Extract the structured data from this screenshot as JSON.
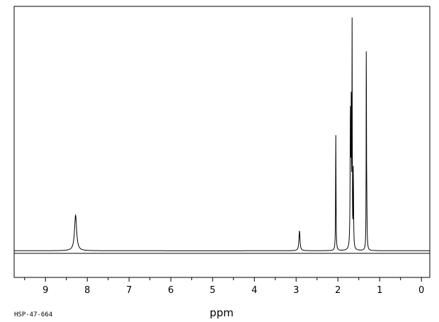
{
  "chart_data": {
    "type": "line",
    "title": "",
    "xlabel": "ppm",
    "ylabel": "",
    "sample_code": "HSP-47-664",
    "xlim": [
      9.75,
      -0.2
    ],
    "ylim": [
      -0.12,
      1.1
    ],
    "x_reversed": true,
    "grid": false,
    "ticks": [
      {
        "value": 9,
        "label": "9"
      },
      {
        "value": 8,
        "label": "8"
      },
      {
        "value": 7,
        "label": "7"
      },
      {
        "value": 6,
        "label": "6"
      },
      {
        "value": 5,
        "label": "5"
      },
      {
        "value": 4,
        "label": "4"
      },
      {
        "value": 3,
        "label": "3"
      },
      {
        "value": 2,
        "label": "2"
      },
      {
        "value": 1,
        "label": "1"
      },
      {
        "value": 0,
        "label": "0"
      }
    ],
    "series": [
      {
        "peaks": [
          {
            "ppm": 8.28,
            "height": 0.16,
            "width": 0.03
          },
          {
            "ppm": 2.92,
            "height": 0.09,
            "width": 0.015
          },
          {
            "ppm": 2.05,
            "height": 0.52,
            "width": 0.006
          },
          {
            "ppm": 1.7,
            "height": 0.6,
            "width": 0.008
          },
          {
            "ppm": 1.68,
            "height": 0.62,
            "width": 0.006
          },
          {
            "ppm": 1.66,
            "height": 1.0,
            "width": 0.004
          },
          {
            "ppm": 1.63,
            "height": 0.35,
            "width": 0.006
          },
          {
            "ppm": 1.32,
            "height": 0.92,
            "width": 0.004
          },
          {
            "ppm": 1.31,
            "height": 0.2,
            "width": 0.008
          }
        ]
      }
    ]
  }
}
